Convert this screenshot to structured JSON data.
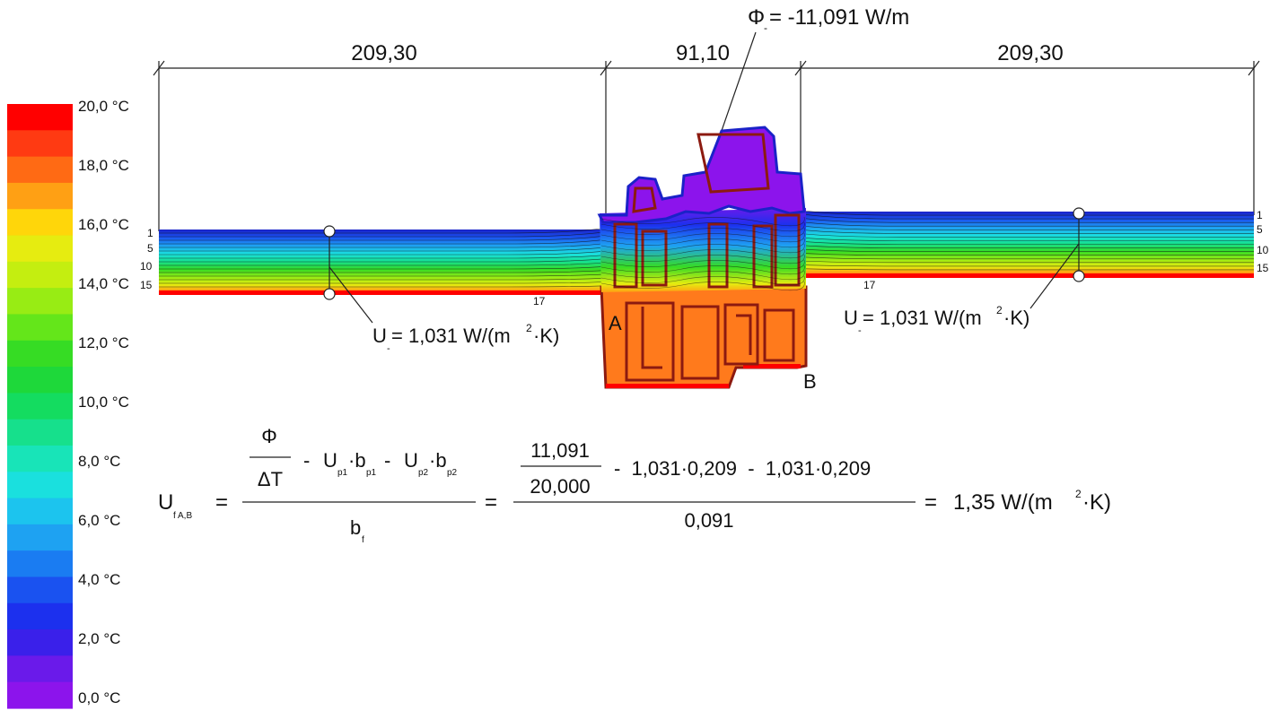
{
  "legend": {
    "colors": [
      "#ff0000",
      "#ff3a12",
      "#ff6a14",
      "#ffa014",
      "#ffd60a",
      "#e6ec10",
      "#c4ee10",
      "#98ec14",
      "#64e61a",
      "#36dc24",
      "#1ed83a",
      "#14dc60",
      "#16e08c",
      "#18e4b8",
      "#1ae0de",
      "#1cc4ee",
      "#1ea2f2",
      "#1a7cf2",
      "#1a52f0",
      "#1c30ee",
      "#3a20ea",
      "#6a1aea",
      "#8c14ec"
    ],
    "labels": [
      "20,0 °C",
      "18,0 °C",
      "16,0 °C",
      "14,0 °C",
      "12,0 °C",
      "10,0 °C",
      "8,0 °C",
      "6,0 °C",
      "4,0 °C",
      "2,0 °C",
      "0,0 °C"
    ]
  },
  "dimensions": {
    "left": "209,30",
    "middle": "91,10",
    "right": "209,30"
  },
  "heat_flow": {
    "symbol": "Φ",
    "subscript": "-",
    "value": "= -11,091 W/m"
  },
  "u_left": {
    "prefix": "U",
    "sub": "-",
    "value": "= 1,031 W/(m",
    "sup": "2",
    "suffix": "·K)"
  },
  "u_right": {
    "prefix": "U",
    "sub": "-",
    "value": "= 1,031 W/(m",
    "sup": "2",
    "suffix": "·K)"
  },
  "point_a": "A",
  "point_b": "B",
  "isoline_left": [
    "1",
    "5",
    "10",
    "15"
  ],
  "isoline_right": [
    "1",
    "5",
    "10",
    "15"
  ],
  "isoline_17_left": "17",
  "isoline_17_right": "17",
  "formula": {
    "lhs": "U",
    "lhs_sub": "f A,B",
    "eq1": "=",
    "phi": "Φ",
    "delta_t": "ΔT",
    "num_rest": {
      "m1": "-",
      "u1": "U",
      "u1_sub": "p1",
      "dot1": "·b",
      "b1_sub": "p1",
      "m2": "-",
      "u2": "U",
      "u2_sub": "p2",
      "dot2": "·b",
      "b2_sub": "p2"
    },
    "den": "b",
    "den_sub": "f",
    "eq2": "=",
    "n_num": "11,091",
    "n_den": "20,000",
    "n_rest": "-  1,031·0,209  -  1,031·0,209",
    "n_total_den": "0,091",
    "eq3": "=",
    "result": "1,35 W/(m",
    "result_sup": "2",
    "result_suffix": "·K)"
  }
}
